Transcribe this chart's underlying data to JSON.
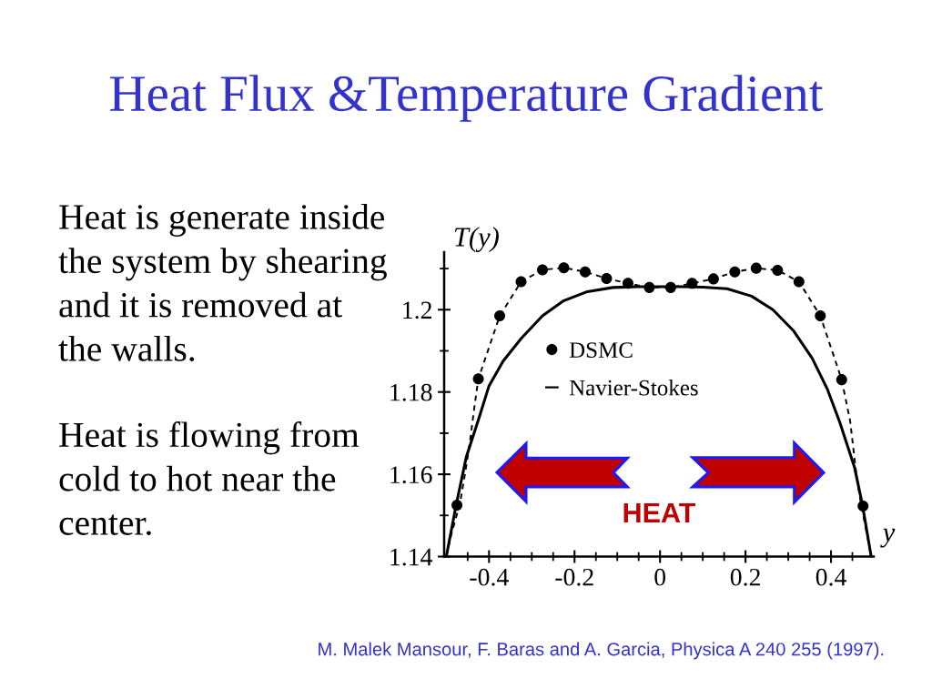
{
  "chart_data": {
    "type": "line",
    "title": "Heat Flux &Temperature Gradient",
    "xlabel": "y",
    "ylabel": "T(y)",
    "xlim": [
      -0.505,
      0.5
    ],
    "ylim": [
      1.14,
      1.214
    ],
    "xticks": [
      {
        "value": -0.45,
        "label": null
      },
      -0.4,
      {
        "value": -0.35,
        "label": null
      },
      {
        "value": -0.3,
        "label": null
      },
      {
        "value": -0.25,
        "label": null
      },
      -0.2,
      {
        "value": -0.15,
        "label": null
      },
      {
        "value": -0.1,
        "label": null
      },
      {
        "value": -0.05,
        "label": null
      },
      0,
      {
        "value": 0.05,
        "label": null
      },
      {
        "value": 0.1,
        "label": null
      },
      {
        "value": 0.15,
        "label": null
      },
      0.2,
      {
        "value": 0.25,
        "label": null
      },
      {
        "value": 0.3,
        "label": null
      },
      {
        "value": 0.35,
        "label": null
      },
      0.4,
      {
        "value": 0.45,
        "label": null
      }
    ],
    "yticks": [
      1.14,
      {
        "value": 1.15,
        "label": null
      },
      1.16,
      {
        "value": 1.17,
        "label": null
      },
      1.18,
      {
        "value": 1.19,
        "label": null
      },
      1.2,
      {
        "value": 1.21,
        "label": null
      }
    ],
    "legend": "center",
    "series": [
      {
        "name": "DSMC",
        "type": "scatter",
        "color": "#000000",
        "marker": "circle",
        "x": [
          -0.475,
          -0.425,
          -0.375,
          -0.325,
          -0.275,
          -0.225,
          -0.175,
          -0.125,
          -0.075,
          -0.025,
          0.025,
          0.075,
          0.125,
          0.175,
          0.225,
          0.275,
          0.325,
          0.375,
          0.425,
          0.475
        ],
        "values": [
          1.1525,
          1.1832,
          1.1985,
          1.2068,
          1.2097,
          1.2102,
          1.2092,
          1.2076,
          1.2064,
          1.2054,
          1.2054,
          1.2064,
          1.2075,
          1.2092,
          1.2101,
          1.2096,
          1.2068,
          1.1985,
          1.183,
          1.1523
        ]
      },
      {
        "color": "#000000",
        "line_style": "dashed",
        "x": [
          -0.5,
          -0.488,
          -0.468,
          -0.456,
          -0.445,
          -0.436,
          -0.425,
          -0.375,
          -0.325,
          -0.275,
          -0.225,
          -0.175,
          -0.125,
          -0.075,
          -0.025,
          0.025,
          0.075,
          0.125,
          0.175,
          0.225,
          0.275,
          0.325,
          0.375,
          0.425,
          0.445,
          0.459,
          0.47,
          0.484,
          0.494
        ],
        "values": [
          1.14,
          1.1455,
          1.1529,
          1.1602,
          1.1676,
          1.175,
          1.1832,
          1.1985,
          1.2068,
          1.2097,
          1.2102,
          1.2092,
          1.2076,
          1.2064,
          1.2054,
          1.2054,
          1.2064,
          1.2075,
          1.2092,
          1.2101,
          1.2096,
          1.2068,
          1.1985,
          1.183,
          1.1728,
          1.1602,
          1.1529,
          1.1455,
          1.14
        ]
      },
      {
        "name": "Navier-Stokes",
        "color": "#000000",
        "line_style": "solid",
        "x": [
          -0.5,
          -0.477,
          -0.453,
          -0.424,
          -0.4,
          -0.367,
          -0.325,
          -0.275,
          -0.225,
          -0.17,
          -0.11,
          -0.05,
          0.0,
          0.05,
          0.1,
          0.157,
          0.214,
          0.264,
          0.313,
          0.356,
          0.391,
          0.42,
          0.455,
          0.474,
          0.494
        ],
        "values": [
          1.14,
          1.1525,
          1.1643,
          1.1735,
          1.1815,
          1.1875,
          1.193,
          1.1985,
          1.2022,
          1.2044,
          1.2054,
          1.2056,
          1.2056,
          1.2056,
          1.2055,
          1.2051,
          1.2033,
          1.2,
          1.1948,
          1.1882,
          1.1808,
          1.1728,
          1.1617,
          1.1523,
          1.14
        ]
      }
    ],
    "annotations": [
      "Heat is generate inside\nthe system by shearing\nand it is removed at\nthe walls.",
      "Heat is flowing from\ncold to hot near the\ncenter.",
      "HEAT",
      "M. Malek Mansour, F. Baras and A. Garcia, Physica A 240 255 (1997)."
    ]
  }
}
